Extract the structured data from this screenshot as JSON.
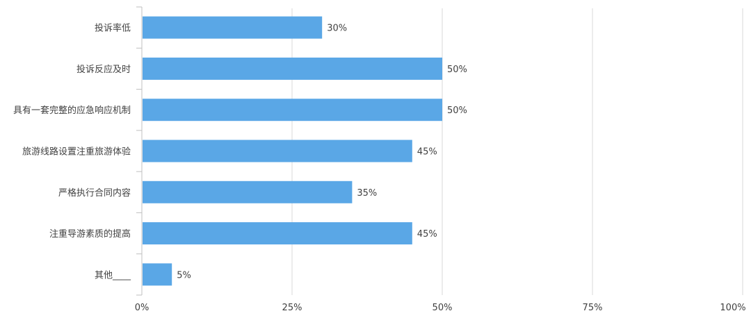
{
  "chart_data": {
    "type": "bar",
    "orientation": "horizontal",
    "categories": [
      "投诉率低",
      "投诉反应及时",
      "具有一套完整的应急响应机制",
      "旅游线路设置注重旅游体验",
      "严格执行合同内容",
      "注重导游素质的提高",
      "其他____"
    ],
    "values": [
      30,
      50,
      50,
      45,
      35,
      45,
      5
    ],
    "data_labels": [
      "30%",
      "50%",
      "50%",
      "45%",
      "35%",
      "45%",
      "5%"
    ],
    "xlim": [
      0,
      100
    ],
    "x_ticks": [
      0,
      25,
      50,
      75,
      100
    ],
    "x_tick_labels": [
      "0%",
      "25%",
      "50%",
      "75%",
      "100%"
    ],
    "grid": "vertical",
    "bar_color": "#5AA7E6",
    "title": "",
    "xlabel": "",
    "ylabel": ""
  }
}
